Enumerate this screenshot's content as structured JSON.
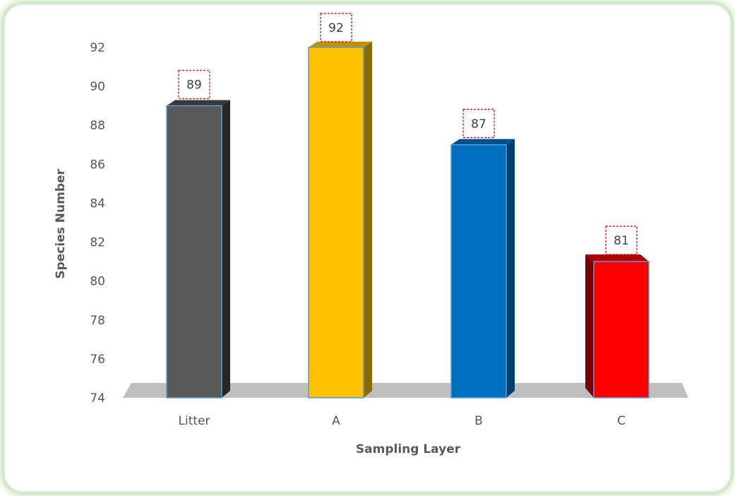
{
  "chart_data": {
    "type": "bar",
    "title": "",
    "xlabel": "Sampling Layer",
    "ylabel": "Species Number",
    "categories": [
      "Litter",
      "A",
      "B",
      "C"
    ],
    "values": [
      89,
      92,
      87,
      81
    ],
    "data_labels": [
      "89",
      "92",
      "87",
      "81"
    ],
    "ylim": [
      74,
      92
    ],
    "yticks": [
      "74",
      "76",
      "78",
      "80",
      "82",
      "84",
      "86",
      "88",
      "90",
      "92"
    ],
    "grid": false,
    "legend": "none",
    "style": "3d-column",
    "colors": {
      "front": [
        "#595959",
        "#FFC000",
        "#0070C0",
        "#FF0000"
      ],
      "side": [
        "#262626",
        "#8C6A00",
        "#003F6E",
        "#7A0000"
      ],
      "top": [
        "#3A3A3A",
        "#C09000",
        "#00508A",
        "#B00000"
      ],
      "outline": "#5B9BD5",
      "floor": "#BFBFBF",
      "label_box_border": "#C00000"
    }
  }
}
